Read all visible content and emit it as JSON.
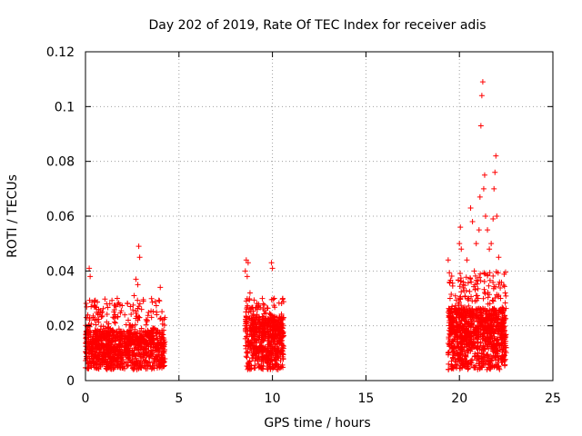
{
  "chart_data": {
    "type": "scatter",
    "title": "Day 202 of 2019, Rate Of TEC Index for receiver adis",
    "xlabel": "GPS time / hours",
    "ylabel": "ROTI / TECUs",
    "xlim": [
      0,
      25
    ],
    "ylim": [
      0,
      0.12
    ],
    "x_ticks": [
      0,
      5,
      10,
      15,
      20,
      25
    ],
    "x_tick_labels": [
      "0",
      "5",
      "10",
      "15",
      "20",
      "25"
    ],
    "y_ticks": [
      0,
      0.02,
      0.04,
      0.06,
      0.08,
      0.1,
      0.12
    ],
    "y_tick_labels": [
      "0",
      "0.02",
      "0.04",
      "0.06",
      "0.08",
      "0.1",
      "0.12"
    ],
    "grid": true,
    "marker": "+",
    "color": "#ff0000",
    "series": [
      {
        "name": "ROTI",
        "points": [
          [
            0.05,
            0.008
          ],
          [
            0.1,
            0.012
          ],
          [
            0.15,
            0.018
          ],
          [
            0.2,
            0.041
          ],
          [
            0.25,
            0.038
          ],
          [
            0.3,
            0.027
          ],
          [
            0.35,
            0.015
          ],
          [
            0.4,
            0.01
          ],
          [
            0.5,
            0.022
          ],
          [
            0.6,
            0.013
          ],
          [
            0.7,
            0.009
          ],
          [
            0.8,
            0.016
          ],
          [
            0.9,
            0.025
          ],
          [
            1.0,
            0.011
          ],
          [
            1.1,
            0.007
          ],
          [
            1.2,
            0.019
          ],
          [
            1.3,
            0.028
          ],
          [
            1.4,
            0.014
          ],
          [
            1.5,
            0.01
          ],
          [
            1.6,
            0.021
          ],
          [
            1.7,
            0.03
          ],
          [
            1.8,
            0.012
          ],
          [
            1.9,
            0.008
          ],
          [
            2.0,
            0.018
          ],
          [
            2.1,
            0.024
          ],
          [
            2.2,
            0.013
          ],
          [
            2.3,
            0.009
          ],
          [
            2.4,
            0.027
          ],
          [
            2.5,
            0.02
          ],
          [
            2.6,
            0.031
          ],
          [
            2.7,
            0.037
          ],
          [
            2.8,
            0.035
          ],
          [
            2.85,
            0.049
          ],
          [
            2.9,
            0.045
          ],
          [
            3.0,
            0.026
          ],
          [
            3.1,
            0.015
          ],
          [
            3.2,
            0.011
          ],
          [
            3.3,
            0.022
          ],
          [
            3.4,
            0.016
          ],
          [
            3.5,
            0.009
          ],
          [
            3.6,
            0.019
          ],
          [
            3.7,
            0.013
          ],
          [
            3.8,
            0.025
          ],
          [
            3.9,
            0.012
          ],
          [
            4.0,
            0.034
          ],
          [
            4.1,
            0.017
          ],
          [
            4.2,
            0.01
          ],
          [
            4.25,
            0.023
          ],
          [
            0.3,
            0.006
          ],
          [
            0.8,
            0.005
          ],
          [
            1.4,
            0.006
          ],
          [
            2.0,
            0.005
          ],
          [
            2.6,
            0.006
          ],
          [
            3.2,
            0.005
          ],
          [
            3.8,
            0.006
          ],
          [
            4.2,
            0.007
          ],
          [
            8.55,
            0.04
          ],
          [
            8.6,
            0.044
          ],
          [
            8.65,
            0.038
          ],
          [
            8.7,
            0.043
          ],
          [
            8.8,
            0.032
          ],
          [
            8.9,
            0.021
          ],
          [
            9.0,
            0.015
          ],
          [
            9.1,
            0.01
          ],
          [
            9.2,
            0.026
          ],
          [
            9.3,
            0.018
          ],
          [
            9.4,
            0.012
          ],
          [
            9.5,
            0.028
          ],
          [
            9.6,
            0.02
          ],
          [
            9.7,
            0.009
          ],
          [
            9.8,
            0.016
          ],
          [
            9.9,
            0.024
          ],
          [
            9.95,
            0.043
          ],
          [
            10.0,
            0.041
          ],
          [
            10.1,
            0.03
          ],
          [
            10.2,
            0.017
          ],
          [
            10.3,
            0.011
          ],
          [
            10.4,
            0.022
          ],
          [
            10.5,
            0.013
          ],
          [
            10.55,
            0.019
          ],
          [
            8.7,
            0.006
          ],
          [
            9.3,
            0.005
          ],
          [
            9.9,
            0.007
          ],
          [
            10.3,
            0.004
          ],
          [
            19.4,
            0.044
          ],
          [
            19.5,
            0.03
          ],
          [
            19.6,
            0.02
          ],
          [
            19.7,
            0.012
          ],
          [
            19.8,
            0.025
          ],
          [
            19.9,
            0.015
          ],
          [
            20.0,
            0.05
          ],
          [
            20.05,
            0.056
          ],
          [
            20.1,
            0.048
          ],
          [
            20.2,
            0.035
          ],
          [
            20.3,
            0.025
          ],
          [
            20.4,
            0.044
          ],
          [
            20.5,
            0.03
          ],
          [
            20.6,
            0.063
          ],
          [
            20.7,
            0.058
          ],
          [
            20.8,
            0.04
          ],
          [
            20.9,
            0.05
          ],
          [
            21.0,
            0.03
          ],
          [
            21.05,
            0.055
          ],
          [
            21.1,
            0.067
          ],
          [
            21.15,
            0.093
          ],
          [
            21.2,
            0.104
          ],
          [
            21.25,
            0.109
          ],
          [
            21.3,
            0.07
          ],
          [
            21.35,
            0.075
          ],
          [
            21.4,
            0.06
          ],
          [
            21.5,
            0.055
          ],
          [
            21.6,
            0.048
          ],
          [
            21.7,
            0.05
          ],
          [
            21.8,
            0.059
          ],
          [
            21.85,
            0.07
          ],
          [
            21.9,
            0.076
          ],
          [
            21.95,
            0.082
          ],
          [
            22.0,
            0.06
          ],
          [
            22.1,
            0.045
          ],
          [
            22.2,
            0.03
          ],
          [
            22.3,
            0.025
          ],
          [
            22.4,
            0.018
          ],
          [
            22.45,
            0.032
          ],
          [
            22.5,
            0.012
          ],
          [
            19.6,
            0.005
          ],
          [
            20.2,
            0.006
          ],
          [
            20.8,
            0.005
          ],
          [
            21.4,
            0.006
          ],
          [
            22.0,
            0.005
          ],
          [
            22.4,
            0.007
          ]
        ]
      }
    ],
    "dense_clusters": [
      {
        "x_start": 0.0,
        "x_end": 4.25,
        "y_low": 0.004,
        "y_mid": 0.013,
        "y_high": 0.03,
        "count": 1100
      },
      {
        "x_start": 8.55,
        "x_end": 10.6,
        "y_low": 0.004,
        "y_mid": 0.016,
        "y_high": 0.03,
        "count": 650
      },
      {
        "x_start": 19.4,
        "x_end": 22.5,
        "y_low": 0.004,
        "y_mid": 0.018,
        "y_high": 0.04,
        "count": 1100
      }
    ]
  }
}
